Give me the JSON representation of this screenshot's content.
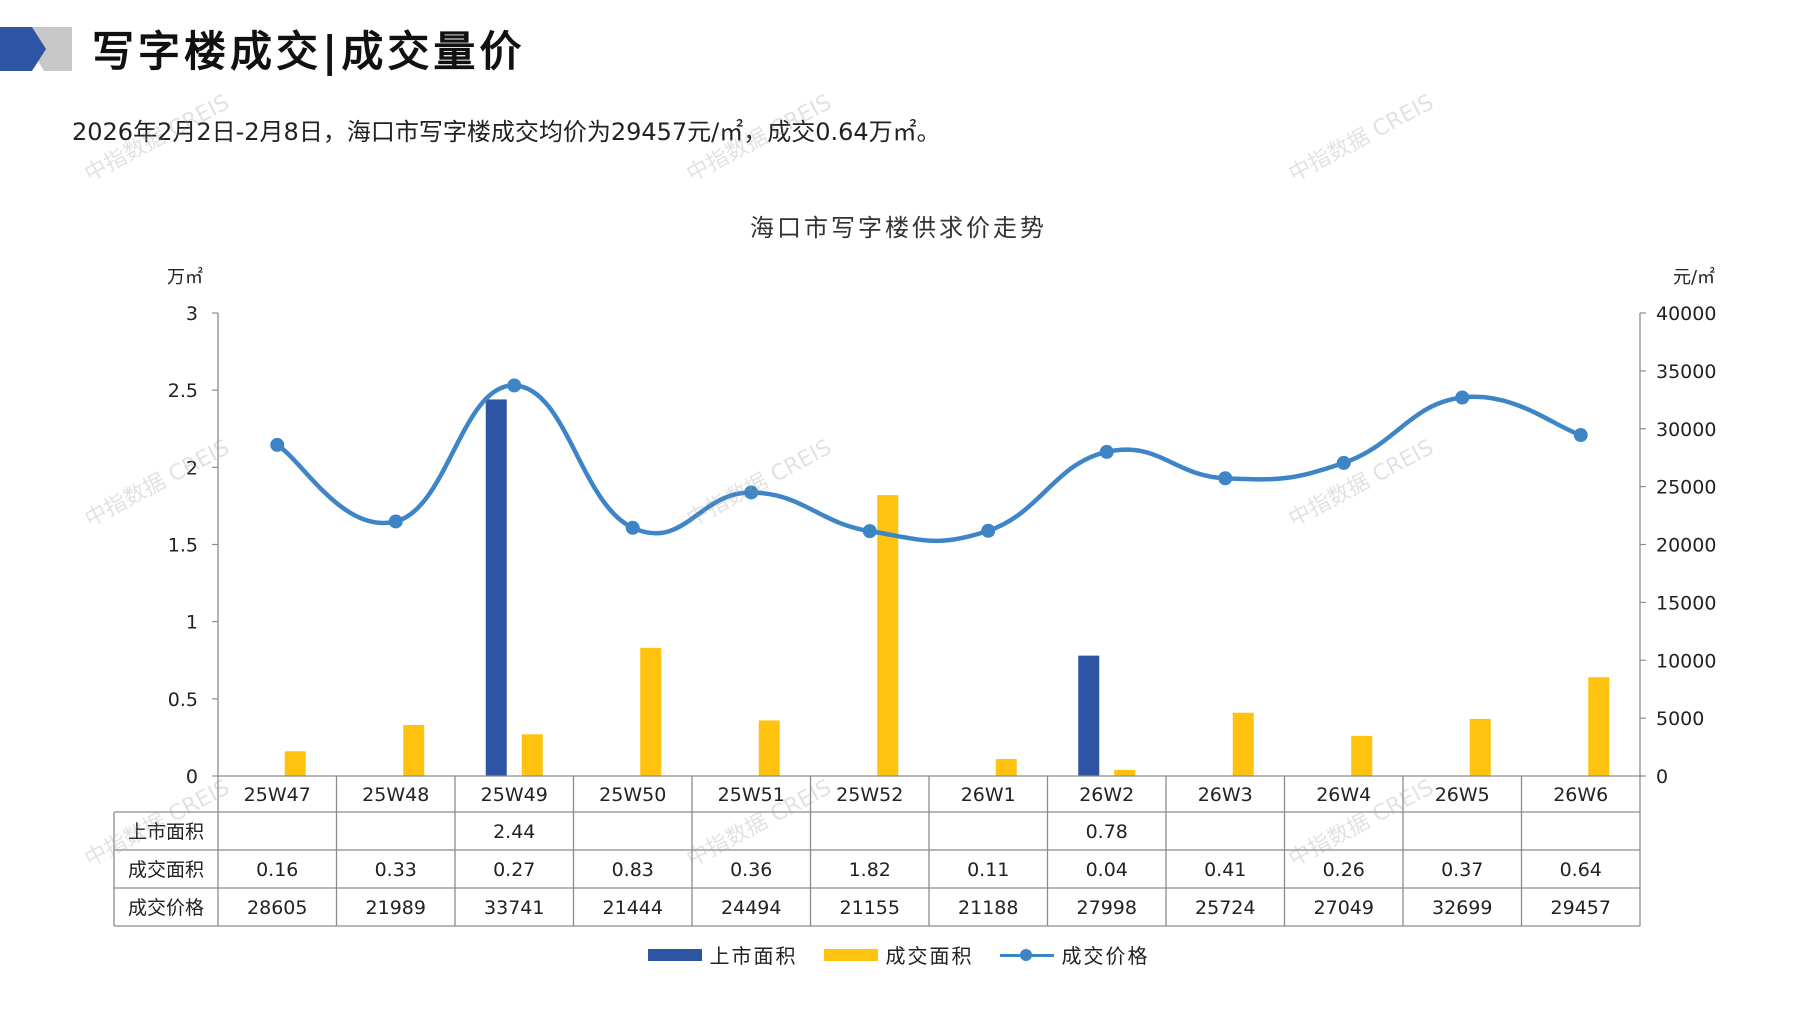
{
  "header": {
    "title": "写字楼成交|成交量价",
    "summary": "2026年2月2日-2月8日，海口市写字楼成交均价为29457元/㎡，成交0.64万㎡。"
  },
  "watermark_text": "中指数据 CREIS",
  "colors": {
    "supply": "#2e55a3",
    "transaction_area": "#fec20f",
    "price": "#3d85c6",
    "logo_dark": "#2e55a3",
    "logo_gray": "#c8c8c8"
  },
  "chart_data": {
    "type": "bar",
    "title": "海口市写字楼供求价走势",
    "y_left_unit": "万㎡",
    "y_right_unit": "元/㎡",
    "y_left_range": [
      0,
      3
    ],
    "y_left_ticks": [
      "0",
      "0.5",
      "1",
      "1.5",
      "2",
      "2.5",
      "3"
    ],
    "y_right_range": [
      0,
      40000
    ],
    "y_right_ticks": [
      "0",
      "5000",
      "10000",
      "15000",
      "20000",
      "25000",
      "30000",
      "35000",
      "40000"
    ],
    "categories": [
      "25W47",
      "25W48",
      "25W49",
      "25W50",
      "25W51",
      "25W52",
      "26W1",
      "26W2",
      "26W3",
      "26W4",
      "26W5",
      "26W6"
    ],
    "series": [
      {
        "name": "上市面积",
        "type": "bar",
        "axis": "left",
        "values": [
          null,
          null,
          2.44,
          null,
          null,
          null,
          null,
          0.78,
          null,
          null,
          null,
          null
        ],
        "labels": [
          "",
          "",
          "2.44",
          "",
          "",
          "",
          "",
          "0.78",
          "",
          "",
          "",
          ""
        ]
      },
      {
        "name": "成交面积",
        "type": "bar",
        "axis": "left",
        "values": [
          0.16,
          0.33,
          0.27,
          0.83,
          0.36,
          1.82,
          0.11,
          0.04,
          0.41,
          0.26,
          0.37,
          0.64
        ],
        "labels": [
          "0.16",
          "0.33",
          "0.27",
          "0.83",
          "0.36",
          "1.82",
          "0.11",
          "0.04",
          "0.41",
          "0.26",
          "0.37",
          "0.64"
        ]
      },
      {
        "name": "成交价格",
        "type": "line",
        "axis": "right",
        "values": [
          28605,
          21989,
          33741,
          21444,
          24494,
          21155,
          21188,
          27998,
          25724,
          27049,
          32699,
          29457
        ],
        "labels": [
          "28605",
          "21989",
          "33741",
          "21444",
          "24494",
          "21155",
          "21188",
          "27998",
          "25724",
          "27049",
          "32699",
          "29457"
        ]
      }
    ],
    "legend_position": "bottom",
    "grid": false
  }
}
